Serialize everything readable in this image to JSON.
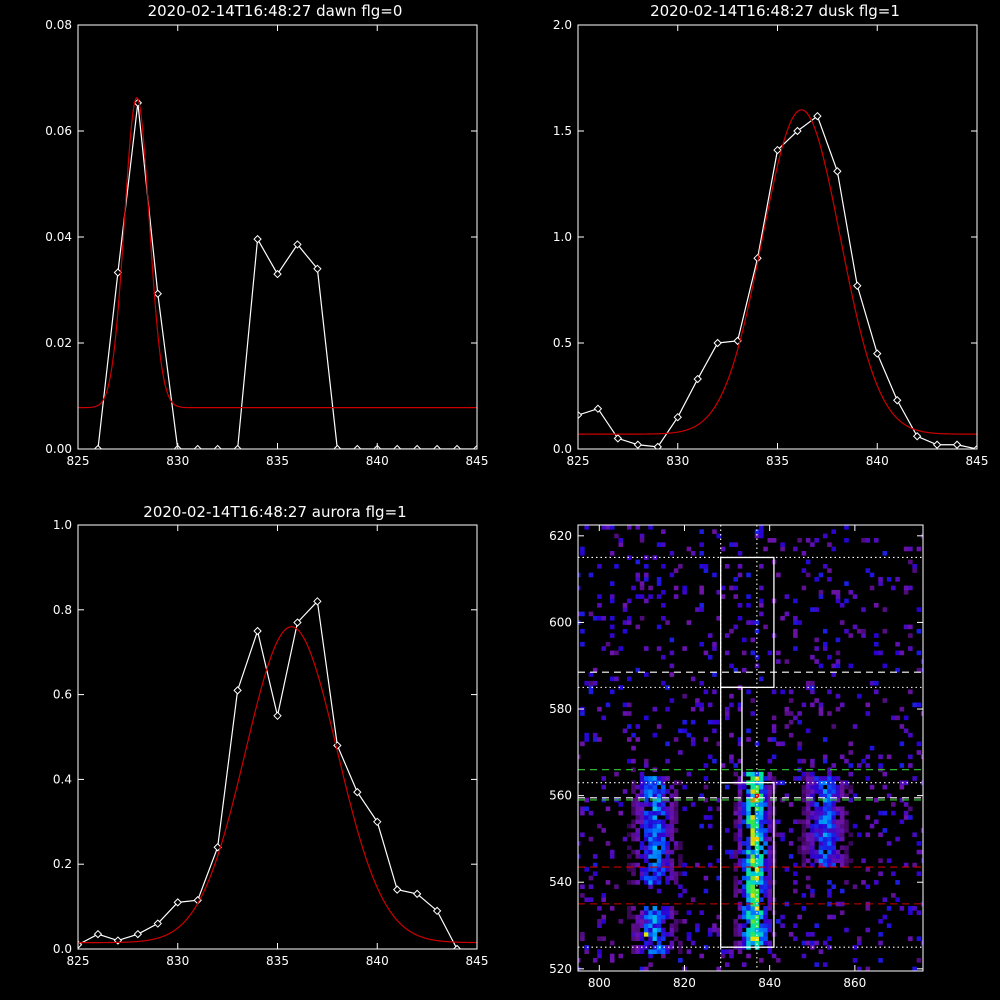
{
  "colors": {
    "background": "#000000",
    "axes": "#ffffff",
    "observed": "#ffffff",
    "fit": "#cc0000",
    "dotted_line": "#ffffff",
    "dashed_white": "#ffffff",
    "dashed_green": "#33cc33",
    "dashed_red": "#cc0000"
  },
  "chart_data": [
    {
      "id": "dawn",
      "type": "line",
      "title": "2020-02-14T16:48:27 dawn flg=0",
      "xlim": [
        825,
        845
      ],
      "ylim": [
        0,
        0.08
      ],
      "xticks": [
        825,
        830,
        835,
        840,
        845
      ],
      "xtick_labels": [
        "825",
        "830",
        "835",
        "840",
        "845"
      ],
      "yticks": [
        0,
        0.02,
        0.04,
        0.06,
        0.08
      ],
      "ytick_labels": [
        "0.00",
        "0.02",
        "0.04",
        "0.06",
        "0.08"
      ],
      "series": [
        {
          "style": "observed",
          "marker": "diamond",
          "x": [
            826,
            827,
            828,
            829,
            830,
            831,
            832,
            833,
            834,
            835,
            836,
            837,
            838,
            839,
            840,
            841,
            842,
            843,
            844,
            845
          ],
          "y": [
            0,
            0.0333,
            0.0653,
            0.0293,
            0,
            0,
            0,
            0,
            0.0396,
            0.033,
            0.0386,
            0.034,
            0,
            0,
            0,
            0,
            0,
            0,
            0,
            0
          ]
        },
        {
          "style": "fit",
          "model": "gaussian",
          "amplitude": 0.0585,
          "center": 827.95,
          "sigma": 0.62,
          "baseline": 0.0078
        }
      ]
    },
    {
      "id": "dusk",
      "type": "line",
      "title": "2020-02-14T16:48:27 dusk flg=1",
      "xlim": [
        825,
        845
      ],
      "ylim": [
        0,
        2.0
      ],
      "xticks": [
        825,
        830,
        835,
        840,
        845
      ],
      "xtick_labels": [
        "825",
        "830",
        "835",
        "840",
        "845"
      ],
      "yticks": [
        0,
        0.5,
        1.0,
        1.5,
        2.0
      ],
      "ytick_labels": [
        "0.0",
        "0.5",
        "1.0",
        "1.5",
        "2.0"
      ],
      "series": [
        {
          "style": "observed",
          "marker": "diamond",
          "x": [
            825,
            826,
            827,
            828,
            829,
            830,
            831,
            832,
            833,
            834,
            835,
            836,
            837,
            838,
            839,
            840,
            841,
            842,
            843,
            844,
            845
          ],
          "y": [
            0.16,
            0.19,
            0.05,
            0.02,
            0.01,
            0.15,
            0.33,
            0.5,
            0.51,
            0.9,
            1.41,
            1.5,
            1.57,
            1.31,
            0.77,
            0.45,
            0.23,
            0.06,
            0.02,
            0.02,
            0.0
          ]
        },
        {
          "style": "fit",
          "model": "gaussian",
          "amplitude": 1.53,
          "center": 836.2,
          "sigma": 1.95,
          "baseline": 0.07
        }
      ]
    },
    {
      "id": "aurora",
      "type": "line",
      "title": "2020-02-14T16:48:27 aurora flg=1",
      "xlim": [
        825,
        845
      ],
      "ylim": [
        0,
        1.0
      ],
      "xticks": [
        825,
        830,
        835,
        840,
        845
      ],
      "xtick_labels": [
        "825",
        "830",
        "835",
        "840",
        "845"
      ],
      "yticks": [
        0,
        0.2,
        0.4,
        0.6,
        0.8,
        1.0
      ],
      "ytick_labels": [
        "0.0",
        "0.2",
        "0.4",
        "0.6",
        "0.8",
        "1.0"
      ],
      "series": [
        {
          "style": "observed",
          "marker": "diamond",
          "x": [
            825,
            826,
            827,
            828,
            829,
            830,
            831,
            832,
            833,
            834,
            835,
            836,
            837,
            838,
            839,
            840,
            841,
            842,
            843,
            844
          ],
          "y": [
            0.01,
            0.035,
            0.02,
            0.035,
            0.06,
            0.11,
            0.115,
            0.24,
            0.61,
            0.75,
            0.55,
            0.77,
            0.82,
            0.48,
            0.37,
            0.3,
            0.14,
            0.13,
            0.09,
            0.0
          ]
        },
        {
          "style": "fit",
          "model": "gaussian",
          "amplitude": 0.745,
          "center": 835.7,
          "sigma": 2.3,
          "baseline": 0.015
        }
      ]
    },
    {
      "id": "image",
      "type": "heatmap",
      "title": "",
      "xlim": [
        795,
        876
      ],
      "ylim": [
        519.5,
        622.5
      ],
      "xticks": [
        800,
        820,
        840,
        860
      ],
      "xtick_labels": [
        "800",
        "820",
        "840",
        "860"
      ],
      "yticks": [
        520,
        540,
        560,
        580,
        600,
        620
      ],
      "ytick_labels": [
        "520",
        "540",
        "560",
        "580",
        "600",
        "620"
      ],
      "colormap": "rainbow",
      "emission_bands": [
        {
          "x_center": 836.5,
          "x_sigma": 2.0,
          "y_range": [
            525,
            565
          ],
          "intensity": 0.75
        },
        {
          "x_center": 813,
          "x_sigma": 2.5,
          "y_range": [
            540,
            564
          ],
          "intensity": 0.45
        },
        {
          "x_center": 813,
          "x_sigma": 2.5,
          "y_range": [
            524,
            534
          ],
          "intensity": 0.45
        },
        {
          "x_center": 853,
          "x_sigma": 2.5,
          "y_range": [
            544,
            564
          ],
          "intensity": 0.4
        }
      ],
      "hot_spots": [
        {
          "x": 837,
          "y": 560,
          "value": 1.0
        },
        {
          "x": 836,
          "y": 559,
          "value": 0.9
        },
        {
          "x": 811,
          "y": 528,
          "value": 0.8
        }
      ],
      "lines": [
        {
          "orientation": "horizontal",
          "value": 615,
          "style": "dotted",
          "color": "dotted_line"
        },
        {
          "orientation": "horizontal",
          "value": 585,
          "style": "dotted",
          "color": "dotted_line"
        },
        {
          "orientation": "horizontal",
          "value": 563,
          "style": "dotted",
          "color": "dotted_line"
        },
        {
          "orientation": "horizontal",
          "value": 525,
          "style": "dotted",
          "color": "dotted_line"
        },
        {
          "orientation": "vertical",
          "value": 828.5,
          "style": "dotted",
          "color": "dotted_line"
        },
        {
          "orientation": "vertical",
          "value": 837,
          "style": "dotted",
          "color": "dotted_line"
        },
        {
          "orientation": "horizontal",
          "value": 588.5,
          "style": "dashed",
          "color": "dashed_white"
        },
        {
          "orientation": "horizontal",
          "value": 566,
          "style": "dashed",
          "color": "dashed_green"
        },
        {
          "orientation": "horizontal",
          "value": 559.5,
          "style": "dashed",
          "color": "dashed_white"
        },
        {
          "orientation": "horizontal",
          "value": 559,
          "style": "dashed",
          "color": "dashed_green"
        },
        {
          "orientation": "horizontal",
          "value": 543.5,
          "style": "dashed",
          "color": "dashed_red"
        },
        {
          "orientation": "horizontal",
          "value": 535,
          "style": "dashed",
          "color": "dashed_red"
        }
      ],
      "boxes": [
        {
          "x_range": [
            828.5,
            841
          ],
          "y_range": [
            585,
            615
          ]
        },
        {
          "x_range": [
            828.5,
            841
          ],
          "y_range": [
            525,
            563
          ]
        },
        {
          "x_range": [
            828.5,
            833.5
          ],
          "y_range": [
            563,
            585
          ]
        }
      ]
    }
  ]
}
